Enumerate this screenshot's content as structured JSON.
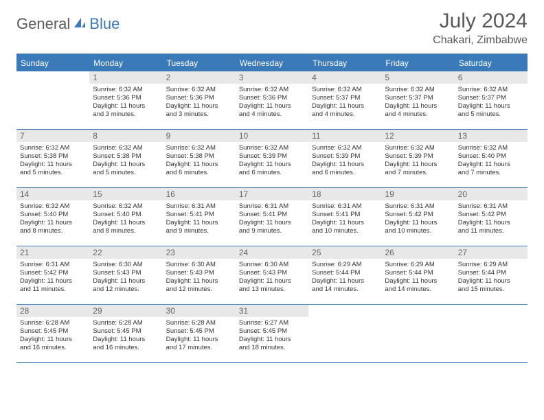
{
  "logo": {
    "part1": "General",
    "part2": "Blue"
  },
  "header": {
    "title": "July 2024",
    "location": "Chakari, Zimbabwe"
  },
  "colors": {
    "accent": "#3a7ab8",
    "day_bg": "#e8e8e8",
    "text": "#333333",
    "header_text": "#595959"
  },
  "dayNames": [
    "Sunday",
    "Monday",
    "Tuesday",
    "Wednesday",
    "Thursday",
    "Friday",
    "Saturday"
  ],
  "weeks": [
    [
      null,
      {
        "n": "1",
        "sr": "Sunrise: 6:32 AM",
        "ss": "Sunset: 5:36 PM",
        "dl1": "Daylight: 11 hours",
        "dl2": "and 3 minutes."
      },
      {
        "n": "2",
        "sr": "Sunrise: 6:32 AM",
        "ss": "Sunset: 5:36 PM",
        "dl1": "Daylight: 11 hours",
        "dl2": "and 3 minutes."
      },
      {
        "n": "3",
        "sr": "Sunrise: 6:32 AM",
        "ss": "Sunset: 5:36 PM",
        "dl1": "Daylight: 11 hours",
        "dl2": "and 4 minutes."
      },
      {
        "n": "4",
        "sr": "Sunrise: 6:32 AM",
        "ss": "Sunset: 5:37 PM",
        "dl1": "Daylight: 11 hours",
        "dl2": "and 4 minutes."
      },
      {
        "n": "5",
        "sr": "Sunrise: 6:32 AM",
        "ss": "Sunset: 5:37 PM",
        "dl1": "Daylight: 11 hours",
        "dl2": "and 4 minutes."
      },
      {
        "n": "6",
        "sr": "Sunrise: 6:32 AM",
        "ss": "Sunset: 5:37 PM",
        "dl1": "Daylight: 11 hours",
        "dl2": "and 5 minutes."
      }
    ],
    [
      {
        "n": "7",
        "sr": "Sunrise: 6:32 AM",
        "ss": "Sunset: 5:38 PM",
        "dl1": "Daylight: 11 hours",
        "dl2": "and 5 minutes."
      },
      {
        "n": "8",
        "sr": "Sunrise: 6:32 AM",
        "ss": "Sunset: 5:38 PM",
        "dl1": "Daylight: 11 hours",
        "dl2": "and 5 minutes."
      },
      {
        "n": "9",
        "sr": "Sunrise: 6:32 AM",
        "ss": "Sunset: 5:38 PM",
        "dl1": "Daylight: 11 hours",
        "dl2": "and 6 minutes."
      },
      {
        "n": "10",
        "sr": "Sunrise: 6:32 AM",
        "ss": "Sunset: 5:39 PM",
        "dl1": "Daylight: 11 hours",
        "dl2": "and 6 minutes."
      },
      {
        "n": "11",
        "sr": "Sunrise: 6:32 AM",
        "ss": "Sunset: 5:39 PM",
        "dl1": "Daylight: 11 hours",
        "dl2": "and 6 minutes."
      },
      {
        "n": "12",
        "sr": "Sunrise: 6:32 AM",
        "ss": "Sunset: 5:39 PM",
        "dl1": "Daylight: 11 hours",
        "dl2": "and 7 minutes."
      },
      {
        "n": "13",
        "sr": "Sunrise: 6:32 AM",
        "ss": "Sunset: 5:40 PM",
        "dl1": "Daylight: 11 hours",
        "dl2": "and 7 minutes."
      }
    ],
    [
      {
        "n": "14",
        "sr": "Sunrise: 6:32 AM",
        "ss": "Sunset: 5:40 PM",
        "dl1": "Daylight: 11 hours",
        "dl2": "and 8 minutes."
      },
      {
        "n": "15",
        "sr": "Sunrise: 6:32 AM",
        "ss": "Sunset: 5:40 PM",
        "dl1": "Daylight: 11 hours",
        "dl2": "and 8 minutes."
      },
      {
        "n": "16",
        "sr": "Sunrise: 6:31 AM",
        "ss": "Sunset: 5:41 PM",
        "dl1": "Daylight: 11 hours",
        "dl2": "and 9 minutes."
      },
      {
        "n": "17",
        "sr": "Sunrise: 6:31 AM",
        "ss": "Sunset: 5:41 PM",
        "dl1": "Daylight: 11 hours",
        "dl2": "and 9 minutes."
      },
      {
        "n": "18",
        "sr": "Sunrise: 6:31 AM",
        "ss": "Sunset: 5:41 PM",
        "dl1": "Daylight: 11 hours",
        "dl2": "and 10 minutes."
      },
      {
        "n": "19",
        "sr": "Sunrise: 6:31 AM",
        "ss": "Sunset: 5:42 PM",
        "dl1": "Daylight: 11 hours",
        "dl2": "and 10 minutes."
      },
      {
        "n": "20",
        "sr": "Sunrise: 6:31 AM",
        "ss": "Sunset: 5:42 PM",
        "dl1": "Daylight: 11 hours",
        "dl2": "and 11 minutes."
      }
    ],
    [
      {
        "n": "21",
        "sr": "Sunrise: 6:31 AM",
        "ss": "Sunset: 5:42 PM",
        "dl1": "Daylight: 11 hours",
        "dl2": "and 11 minutes."
      },
      {
        "n": "22",
        "sr": "Sunrise: 6:30 AM",
        "ss": "Sunset: 5:43 PM",
        "dl1": "Daylight: 11 hours",
        "dl2": "and 12 minutes."
      },
      {
        "n": "23",
        "sr": "Sunrise: 6:30 AM",
        "ss": "Sunset: 5:43 PM",
        "dl1": "Daylight: 11 hours",
        "dl2": "and 12 minutes."
      },
      {
        "n": "24",
        "sr": "Sunrise: 6:30 AM",
        "ss": "Sunset: 5:43 PM",
        "dl1": "Daylight: 11 hours",
        "dl2": "and 13 minutes."
      },
      {
        "n": "25",
        "sr": "Sunrise: 6:29 AM",
        "ss": "Sunset: 5:44 PM",
        "dl1": "Daylight: 11 hours",
        "dl2": "and 14 minutes."
      },
      {
        "n": "26",
        "sr": "Sunrise: 6:29 AM",
        "ss": "Sunset: 5:44 PM",
        "dl1": "Daylight: 11 hours",
        "dl2": "and 14 minutes."
      },
      {
        "n": "27",
        "sr": "Sunrise: 6:29 AM",
        "ss": "Sunset: 5:44 PM",
        "dl1": "Daylight: 11 hours",
        "dl2": "and 15 minutes."
      }
    ],
    [
      {
        "n": "28",
        "sr": "Sunrise: 6:28 AM",
        "ss": "Sunset: 5:45 PM",
        "dl1": "Daylight: 11 hours",
        "dl2": "and 16 minutes."
      },
      {
        "n": "29",
        "sr": "Sunrise: 6:28 AM",
        "ss": "Sunset: 5:45 PM",
        "dl1": "Daylight: 11 hours",
        "dl2": "and 16 minutes."
      },
      {
        "n": "30",
        "sr": "Sunrise: 6:28 AM",
        "ss": "Sunset: 5:45 PM",
        "dl1": "Daylight: 11 hours",
        "dl2": "and 17 minutes."
      },
      {
        "n": "31",
        "sr": "Sunrise: 6:27 AM",
        "ss": "Sunset: 5:45 PM",
        "dl1": "Daylight: 11 hours",
        "dl2": "and 18 minutes."
      },
      null,
      null,
      null
    ]
  ]
}
